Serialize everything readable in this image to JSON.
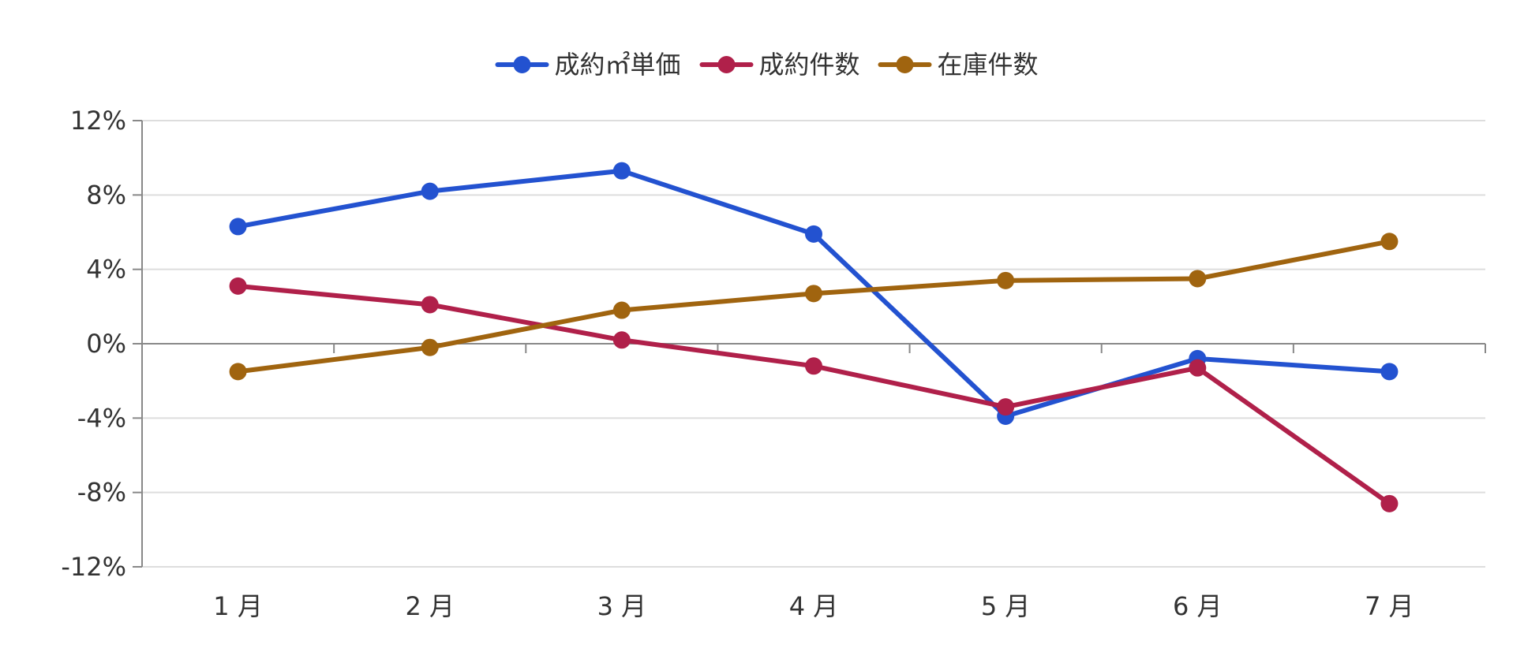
{
  "chart_data": {
    "type": "line",
    "title": "",
    "xlabel": "",
    "ylabel": "",
    "categories": [
      "1 月",
      "2 月",
      "3 月",
      "4 月",
      "5 月",
      "6 月",
      "7 月"
    ],
    "ylim": [
      -12,
      12
    ],
    "yticks": [
      -12,
      -8,
      -4,
      0,
      4,
      8,
      12
    ],
    "y_tick_format": "%",
    "grid": true,
    "legend_position": "top-center",
    "series": [
      {
        "name": "成約㎡単価",
        "color": "#2352D0",
        "values": [
          6.3,
          8.2,
          9.3,
          5.9,
          -3.9,
          -0.8,
          -1.5
        ]
      },
      {
        "name": "成約件数",
        "color": "#B0204A",
        "values": [
          3.1,
          2.1,
          0.2,
          -1.2,
          -3.4,
          -1.3,
          -8.6
        ]
      },
      {
        "name": "在庫件数",
        "color": "#A0640F",
        "values": [
          -1.5,
          -0.2,
          1.8,
          2.7,
          3.4,
          3.5,
          5.5
        ]
      }
    ]
  }
}
